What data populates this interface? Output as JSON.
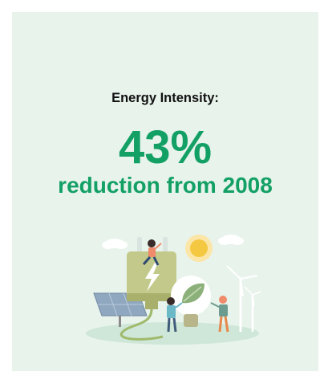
{
  "card": {
    "label": "Energy Intensity:",
    "value": "43%",
    "description": "reduction from 2008"
  },
  "colors": {
    "background": "#e8f3ec",
    "accent": "#13a065",
    "text": "#111111"
  },
  "illustration": {
    "icons": [
      "sun-icon",
      "cloud-icon",
      "plug-icon",
      "lightning-bolt-icon",
      "solar-panel-icon",
      "light-bulb-icon",
      "leaf-icon",
      "wind-turbine-icon",
      "person-icon"
    ]
  }
}
